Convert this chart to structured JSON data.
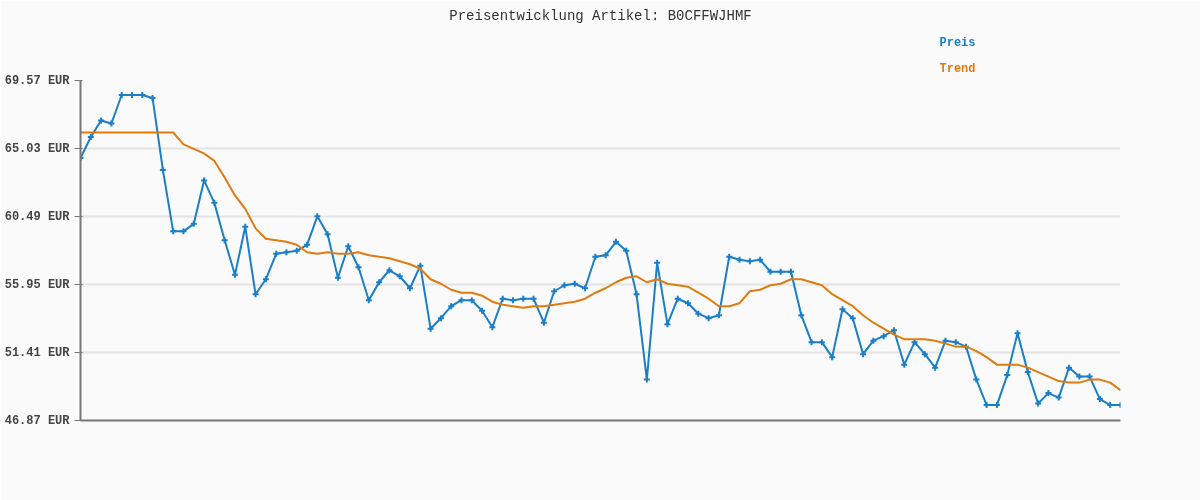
{
  "chart_data": {
    "type": "line",
    "title": "Preisentwicklung Artikel: B0CFFWJHMF",
    "categories": [
      null,
      null,
      null,
      null,
      null,
      null,
      null,
      null,
      null,
      null,
      null,
      null,
      null,
      null,
      null,
      null,
      null,
      null,
      null,
      null,
      null,
      null,
      null,
      null,
      null,
      null,
      null,
      null,
      null,
      null,
      null,
      null,
      null,
      null,
      null,
      null,
      null,
      null,
      null,
      null,
      null,
      null,
      null,
      null,
      null,
      null,
      null,
      null,
      null,
      null,
      null,
      null,
      null,
      null,
      null,
      null,
      null,
      null,
      null,
      null,
      null,
      null,
      null,
      null,
      null,
      null,
      null,
      null,
      null,
      null,
      null,
      null,
      null,
      null,
      null,
      null,
      null,
      null,
      null,
      null,
      null,
      null,
      null,
      null,
      null,
      null,
      null,
      null,
      null,
      null,
      null,
      null,
      null,
      null,
      null,
      null,
      null,
      null,
      null,
      null,
      null,
      null
    ],
    "series": [
      {
        "name": "Preis",
        "color": "#1a7fc8",
        "marker": "cross",
        "values": [
          64.4,
          65.8,
          66.9,
          66.7,
          68.6,
          68.6,
          68.6,
          68.4,
          63.6,
          59.5,
          59.5,
          60.0,
          62.9,
          61.4,
          58.9,
          56.6,
          59.8,
          55.3,
          56.3,
          58.0,
          58.1,
          58.2,
          58.6,
          60.5,
          59.3,
          56.4,
          58.5,
          57.1,
          54.9,
          56.1,
          56.9,
          56.5,
          55.7,
          57.2,
          53.0,
          53.7,
          54.5,
          54.9,
          54.9,
          54.2,
          53.1,
          55.0,
          54.9,
          55.0,
          55.0,
          53.4,
          55.5,
          55.9,
          56.0,
          55.7,
          57.8,
          57.9,
          58.8,
          58.2,
          55.3,
          49.6,
          57.4,
          53.3,
          55.0,
          54.7,
          54.0,
          53.7,
          53.9,
          57.8,
          57.6,
          57.5,
          57.6,
          56.8,
          56.8,
          56.8,
          53.9,
          52.1,
          52.1,
          51.1,
          54.3,
          53.7,
          51.3,
          52.2,
          52.5,
          52.9,
          50.6,
          52.1,
          51.3,
          50.4,
          52.2,
          52.1,
          51.8,
          49.6,
          47.9,
          47.9,
          49.9,
          52.7,
          50.1,
          48.0,
          48.7,
          48.4,
          50.4,
          49.8,
          49.8,
          48.3,
          47.9,
          47.9
        ]
      },
      {
        "name": "Trend",
        "color": "#e07b10",
        "marker": "none",
        "values": [
          66.1,
          66.1,
          66.1,
          66.1,
          66.1,
          66.1,
          66.1,
          66.1,
          66.1,
          66.1,
          65.3,
          65.0,
          64.7,
          64.2,
          63.1,
          61.9,
          61.0,
          59.7,
          59.0,
          58.9,
          58.8,
          58.6,
          58.1,
          58.0,
          58.1,
          58.0,
          58.0,
          58.1,
          57.9,
          57.8,
          57.7,
          57.5,
          57.3,
          57.0,
          56.3,
          56.0,
          55.6,
          55.4,
          55.4,
          55.2,
          54.8,
          54.6,
          54.5,
          54.4,
          54.5,
          54.5,
          54.6,
          54.7,
          54.8,
          55.0,
          55.4,
          55.7,
          56.1,
          56.4,
          56.5,
          56.1,
          56.3,
          56.0,
          55.9,
          55.8,
          55.4,
          55.0,
          54.5,
          54.5,
          54.7,
          55.5,
          55.6,
          55.9,
          56.0,
          56.3,
          56.3,
          56.1,
          55.9,
          55.3,
          54.9,
          54.5,
          53.9,
          53.4,
          53.0,
          52.6,
          52.3,
          52.3,
          52.3,
          52.2,
          52.0,
          51.8,
          51.8,
          51.5,
          51.1,
          50.6,
          50.6,
          50.6,
          50.4,
          50.1,
          49.8,
          49.5,
          49.4,
          49.4,
          49.6,
          49.6,
          49.4,
          48.9
        ]
      }
    ],
    "ylim": [
      46.87,
      69.57
    ],
    "yticks": [
      {
        "value": 46.87,
        "label": "46.87 EUR"
      },
      {
        "value": 51.41,
        "label": "51.41 EUR"
      },
      {
        "value": 55.95,
        "label": "55.95 EUR"
      },
      {
        "value": 60.49,
        "label": "60.49 EUR"
      },
      {
        "value": 65.03,
        "label": "65.03 EUR"
      },
      {
        "value": 69.57,
        "label": "69.57 EUR"
      }
    ],
    "grid": "y",
    "line_style": "solid"
  }
}
